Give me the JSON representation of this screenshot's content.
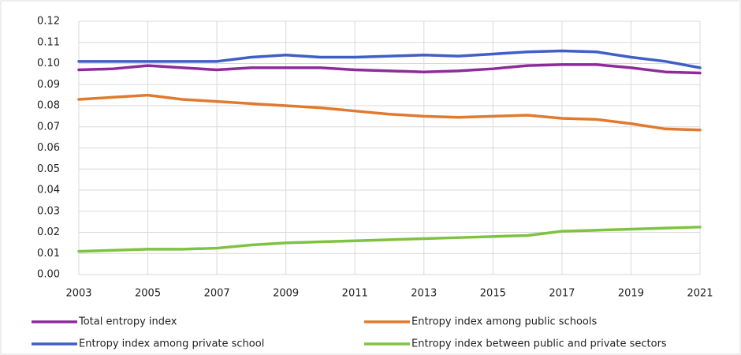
{
  "chart_data": {
    "type": "line",
    "x": [
      2003,
      2004,
      2005,
      2006,
      2007,
      2008,
      2009,
      2010,
      2011,
      2012,
      2013,
      2014,
      2015,
      2016,
      2017,
      2018,
      2019,
      2020,
      2021
    ],
    "series": [
      {
        "name": "Total entropy index",
        "color": "#8e2b9b",
        "values": [
          0.097,
          0.0975,
          0.099,
          0.098,
          0.097,
          0.098,
          0.098,
          0.098,
          0.097,
          0.0965,
          0.096,
          0.0965,
          0.0975,
          0.099,
          0.0995,
          0.0995,
          0.098,
          0.096,
          0.0955
        ]
      },
      {
        "name": "Entropy index among public schools",
        "color": "#e07a2e",
        "values": [
          0.083,
          0.084,
          0.085,
          0.083,
          0.082,
          0.081,
          0.08,
          0.079,
          0.0775,
          0.076,
          0.075,
          0.0745,
          0.075,
          0.0755,
          0.074,
          0.0735,
          0.0715,
          0.069,
          0.0685
        ]
      },
      {
        "name": "Entropy index among private school",
        "color": "#3f5fc6",
        "values": [
          0.101,
          0.101,
          0.101,
          0.101,
          0.101,
          0.103,
          0.104,
          0.103,
          0.103,
          0.1035,
          0.104,
          0.1035,
          0.1045,
          0.1055,
          0.106,
          0.1055,
          0.103,
          0.101,
          0.098
        ]
      },
      {
        "name": "Entropy index between public and private sectors",
        "color": "#7fc241",
        "values": [
          0.011,
          0.0115,
          0.012,
          0.012,
          0.0125,
          0.014,
          0.015,
          0.0155,
          0.016,
          0.0165,
          0.017,
          0.0175,
          0.018,
          0.0185,
          0.0205,
          0.021,
          0.0215,
          0.022,
          0.0225
        ]
      }
    ],
    "xlim": [
      2003,
      2021
    ],
    "xticks": [
      2003,
      2005,
      2007,
      2009,
      2011,
      2013,
      2015,
      2017,
      2019,
      2021
    ],
    "ylim": [
      0,
      0.12
    ],
    "yticks": [
      {
        "value": 0,
        "label": "0.00"
      },
      0.01,
      0.02,
      0.03,
      0.04,
      0.05,
      0.06,
      0.07,
      0.08,
      0.09,
      {
        "value": 0.1,
        "label": "0.10"
      },
      0.11,
      0.12
    ],
    "grid": true
  }
}
